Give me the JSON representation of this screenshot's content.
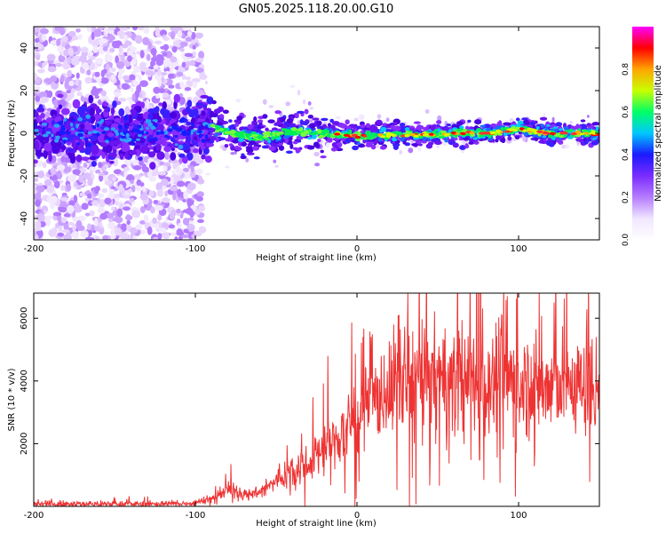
{
  "figure": {
    "title": "GN05.2025.118.20.00.G10"
  },
  "chart_data": [
    {
      "type": "heatmap",
      "xlabel": "Height of straight line (km)",
      "ylabel": "Frequency (Hz)",
      "xlim": [
        -200,
        150
      ],
      "ylim": [
        -50,
        50
      ],
      "xticks": [
        -200,
        -100,
        0,
        100
      ],
      "yticks": [
        -40,
        -20,
        0,
        20,
        40
      ],
      "colorbar": {
        "label": "Normalized spectral amplitude",
        "range": [
          0,
          1
        ],
        "ticks": [
          0.0,
          0.2,
          0.4,
          0.6,
          0.8
        ],
        "tick_labels": [
          "0.0",
          "0.2",
          "0.4",
          "0.6",
          "0.8"
        ],
        "colormap": [
          "#ffffff",
          "#f0e6ff",
          "#b57cff",
          "#7a2cff",
          "#1a1aff",
          "#00c8ff",
          "#00ff66",
          "#c8ff00",
          "#ffa500",
          "#ff0000",
          "#ff00ff"
        ]
      },
      "ridge_centre_hz": [
        {
          "x": -200,
          "y": 0
        },
        {
          "x": -100,
          "y": 1
        },
        {
          "x": -90,
          "y": 4
        },
        {
          "x": -80,
          "y": 0
        },
        {
          "x": -60,
          "y": -2
        },
        {
          "x": -40,
          "y": 1
        },
        {
          "x": -20,
          "y": 0
        },
        {
          "x": 0,
          "y": -1
        },
        {
          "x": 20,
          "y": -1
        },
        {
          "x": 40,
          "y": -1
        },
        {
          "x": 60,
          "y": 0
        },
        {
          "x": 80,
          "y": 0
        },
        {
          "x": 100,
          "y": 2
        },
        {
          "x": 120,
          "y": 0
        },
        {
          "x": 150,
          "y": 0
        }
      ]
    },
    {
      "type": "line",
      "xlabel": "Height of straight line (km)",
      "ylabel": "SNR (10 * v/v)",
      "xlim": [
        -200,
        150
      ],
      "ylim": [
        0,
        6800
      ],
      "xticks": [
        -200,
        -100,
        0,
        100
      ],
      "yticks": [
        2000,
        4000,
        6000
      ],
      "series": [
        {
          "color": "#ee3333",
          "trend": [
            {
              "x": -200,
              "y": 80
            },
            {
              "x": -110,
              "y": 80
            },
            {
              "x": -100,
              "y": 120
            },
            {
              "x": -90,
              "y": 250
            },
            {
              "x": -80,
              "y": 550
            },
            {
              "x": -70,
              "y": 400
            },
            {
              "x": -60,
              "y": 450
            },
            {
              "x": -50,
              "y": 800
            },
            {
              "x": -40,
              "y": 1200
            },
            {
              "x": -30,
              "y": 1400
            },
            {
              "x": -20,
              "y": 1900
            },
            {
              "x": -10,
              "y": 2200
            },
            {
              "x": 0,
              "y": 2900
            },
            {
              "x": 10,
              "y": 3300
            },
            {
              "x": 20,
              "y": 3800
            },
            {
              "x": 30,
              "y": 4000
            },
            {
              "x": 50,
              "y": 4000
            },
            {
              "x": 70,
              "y": 3900
            },
            {
              "x": 90,
              "y": 4100
            },
            {
              "x": 110,
              "y": 3800
            },
            {
              "x": 130,
              "y": 3900
            },
            {
              "x": 150,
              "y": 3800
            }
          ],
          "peaks": [
            {
              "x": -78,
              "y": 1350
            },
            {
              "x": -18,
              "y": 4800
            },
            {
              "x": 25,
              "y": 4900
            },
            {
              "x": 93,
              "y": 6700
            },
            {
              "x": 122,
              "y": 6500
            },
            {
              "x": 148,
              "y": 5400
            }
          ]
        }
      ]
    }
  ]
}
